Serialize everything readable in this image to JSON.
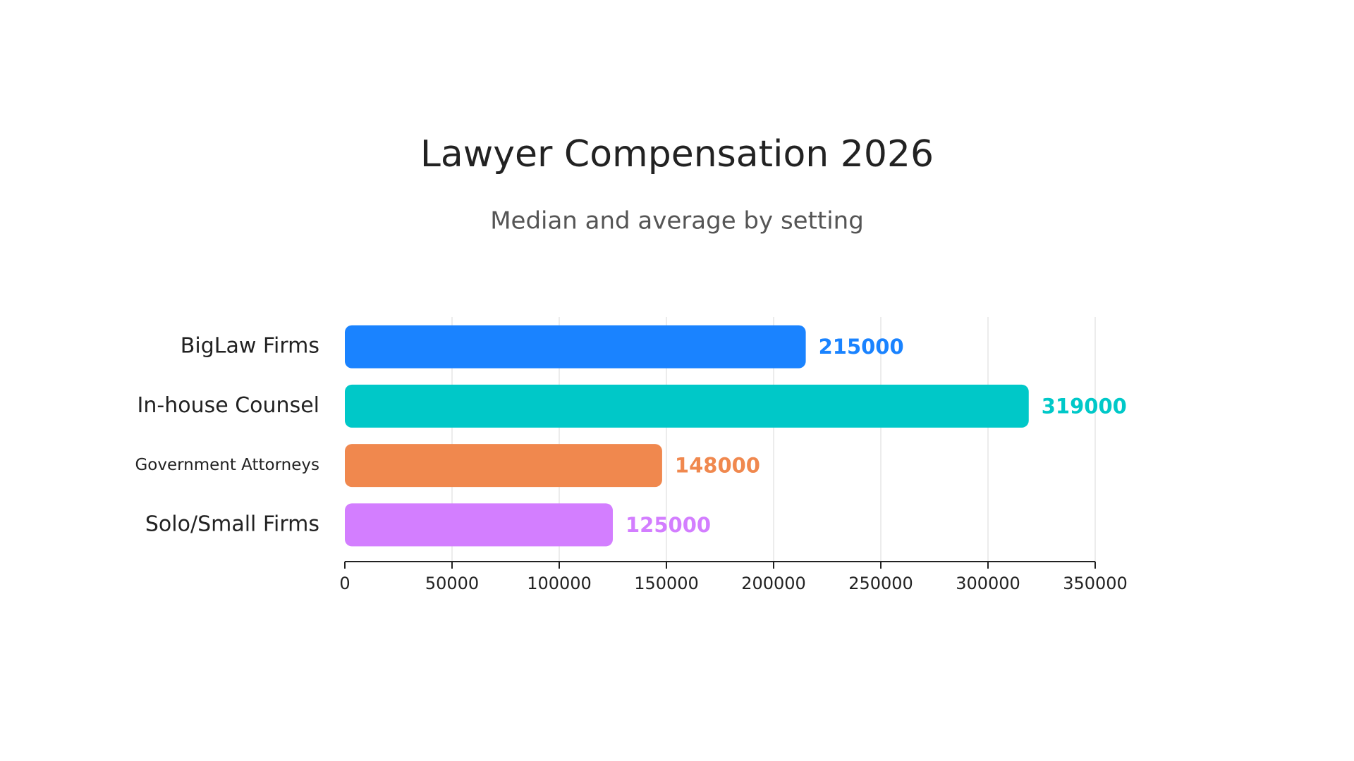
{
  "chart_data": {
    "type": "bar",
    "orientation": "horizontal",
    "title": "Lawyer Compensation 2026",
    "subtitle": "Median and average by setting",
    "categories": [
      "BigLaw Firms",
      "In-house Counsel",
      "Government Attorneys",
      "Solo/Small Firms"
    ],
    "values": [
      215000,
      319000,
      148000,
      125000
    ],
    "colors": [
      "#1a83ff",
      "#00c8c8",
      "#f0884e",
      "#d37eff"
    ],
    "xlim": [
      0,
      350000
    ],
    "xticks": [
      0,
      50000,
      100000,
      150000,
      200000,
      250000,
      300000,
      350000
    ],
    "grid": true
  }
}
